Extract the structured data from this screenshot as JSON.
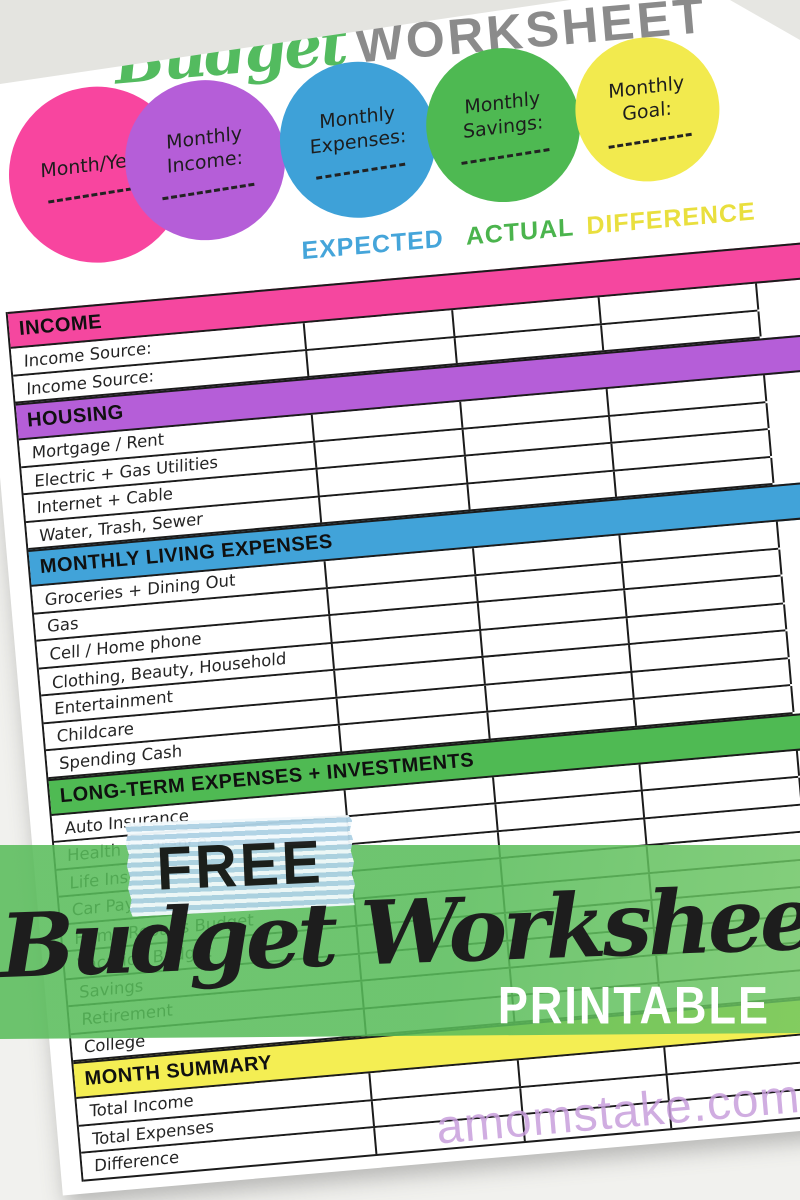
{
  "title": {
    "script": "Budget",
    "caps": "WORKSHEET"
  },
  "circles": [
    {
      "id": "month-year",
      "label": "Month/Year:",
      "color": "#f8459f",
      "blank": true
    },
    {
      "id": "monthly-income",
      "label": "Monthly\nIncome:",
      "color": "#b55ed8",
      "blank": true
    },
    {
      "id": "monthly-expenses",
      "label": "Monthly\nExpenses:",
      "color": "#3ea1d8",
      "blank": true
    },
    {
      "id": "monthly-savings",
      "label": "Monthly\nSavings:",
      "color": "#4eb952",
      "blank": true
    },
    {
      "id": "monthly-goal",
      "label": "Monthly\nGoal:",
      "color": "#f2ea4e",
      "blank": true
    }
  ],
  "column_headers": [
    {
      "label": "EXPECTED",
      "color": "#45a5da"
    },
    {
      "label": "ACTUAL",
      "color": "#4bb44d"
    },
    {
      "label": "DIFFERENCE",
      "color": "#e9df3e"
    }
  ],
  "table": {
    "value_columns": 3,
    "sections": [
      {
        "name": "INCOME",
        "color": "#f5479f",
        "rows": [
          "Income Source:",
          "Income Source:"
        ]
      },
      {
        "name": "HOUSING",
        "color": "#b55ed8",
        "rows": [
          "Mortgage / Rent",
          "Electric + Gas Utilities",
          "Internet + Cable",
          "Water, Trash, Sewer"
        ]
      },
      {
        "name": "MONTHLY LIVING EXPENSES",
        "color": "#41a3d9",
        "rows": [
          "Groceries + Dining Out",
          "Gas",
          "Cell / Home phone",
          "Clothing, Beauty, Household",
          "Entertainment",
          "Childcare",
          "Spending Cash"
        ]
      },
      {
        "name": "LONG-TERM EXPENSES + INVESTMENTS",
        "color": "#4fba53",
        "rows": [
          "Auto Insurance",
          "Health Insurance",
          "Life Insurance",
          "Car Payment",
          "Home Repairs Budget",
          "Vacation Budget",
          "Savings",
          "Retirement",
          "College"
        ]
      },
      {
        "name": "MONTH SUMMARY",
        "color": "#f4ee53",
        "rows": [
          "Total Income",
          "Total Expenses",
          "Difference"
        ]
      }
    ]
  },
  "overlay": {
    "badge": "FREE",
    "title": "Budget Worksheet",
    "subtitle": "PRINTABLE"
  },
  "watermark": "amomstake.com"
}
